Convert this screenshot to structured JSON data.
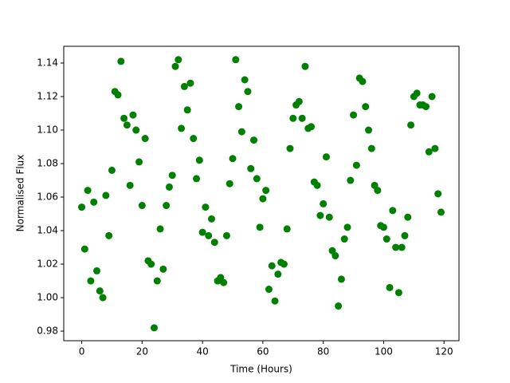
{
  "chart_data": {
    "type": "scatter",
    "xlabel": "Time (Hours)",
    "ylabel": "Normalised Flux",
    "color": "#008000",
    "x": [
      0,
      1,
      2,
      3,
      4,
      5,
      6,
      7,
      8,
      9,
      10,
      11,
      12,
      13,
      14,
      15,
      16,
      17,
      18,
      19,
      20,
      21,
      22,
      23,
      24,
      25,
      26,
      27,
      28,
      29,
      30,
      31,
      32,
      33,
      34,
      35,
      36,
      37,
      38,
      39,
      40,
      41,
      42,
      43,
      44,
      45,
      46,
      47,
      48,
      49,
      50,
      51,
      52,
      53,
      54,
      55,
      56,
      57,
      58,
      59,
      60,
      61,
      62,
      63,
      64,
      65,
      66,
      67,
      68,
      69,
      70,
      71,
      72,
      73,
      74,
      75,
      76,
      77,
      78,
      79,
      80,
      81,
      82,
      83,
      84,
      85,
      86,
      87,
      88,
      89,
      90,
      91,
      92,
      93,
      94,
      95,
      96,
      97,
      98,
      99,
      100,
      101,
      102,
      103,
      104,
      105,
      106,
      107,
      108,
      109,
      110,
      111,
      112,
      113,
      114,
      115,
      116,
      117,
      118,
      119
    ],
    "values": [
      1.054,
      1.029,
      1.064,
      1.01,
      1.057,
      1.016,
      1.004,
      1.0,
      1.061,
      1.037,
      1.076,
      1.123,
      1.121,
      1.141,
      1.107,
      1.103,
      1.067,
      1.109,
      1.1,
      1.081,
      1.055,
      1.095,
      1.022,
      1.02,
      0.982,
      1.01,
      1.041,
      1.017,
      1.055,
      1.066,
      1.073,
      1.138,
      1.142,
      1.101,
      1.126,
      1.112,
      1.128,
      1.095,
      1.071,
      1.082,
      1.039,
      1.054,
      1.037,
      1.047,
      1.033,
      1.01,
      1.012,
      1.009,
      1.037,
      1.068,
      1.083,
      1.142,
      1.114,
      1.099,
      1.13,
      1.123,
      1.077,
      1.094,
      1.071,
      1.042,
      1.059,
      1.064,
      1.005,
      1.019,
      0.998,
      1.014,
      1.021,
      1.02,
      1.041,
      1.089,
      1.107,
      1.115,
      1.117,
      1.107,
      1.138,
      1.101,
      1.102,
      1.069,
      1.067,
      1.049,
      1.056,
      1.084,
      1.048,
      1.028,
      1.025,
      0.995,
      1.011,
      1.035,
      1.042,
      1.07,
      1.109,
      1.079,
      1.131,
      1.129,
      1.114,
      1.1,
      1.089,
      1.067,
      1.064,
      1.043,
      1.042,
      1.035,
      1.006,
      1.052,
      1.03,
      1.003,
      1.03,
      1.037,
      1.048,
      1.103,
      1.12,
      1.122,
      1.115,
      1.115,
      1.114,
      1.087,
      1.12,
      1.089,
      1.062,
      1.051
    ],
    "xlim": [
      -5.95,
      124.95
    ],
    "xticks": [
      0,
      20,
      40,
      60,
      80,
      100,
      120
    ],
    "ylim": [
      0.9743,
      1.15
    ],
    "yticks": [
      0.98,
      {
        "value": 1.0,
        "label": "1.00"
      },
      1.02,
      1.04,
      1.06,
      1.08,
      {
        "value": 1.1,
        "label": "1.10"
      },
      1.12,
      1.14
    ],
    "grid": false
  }
}
